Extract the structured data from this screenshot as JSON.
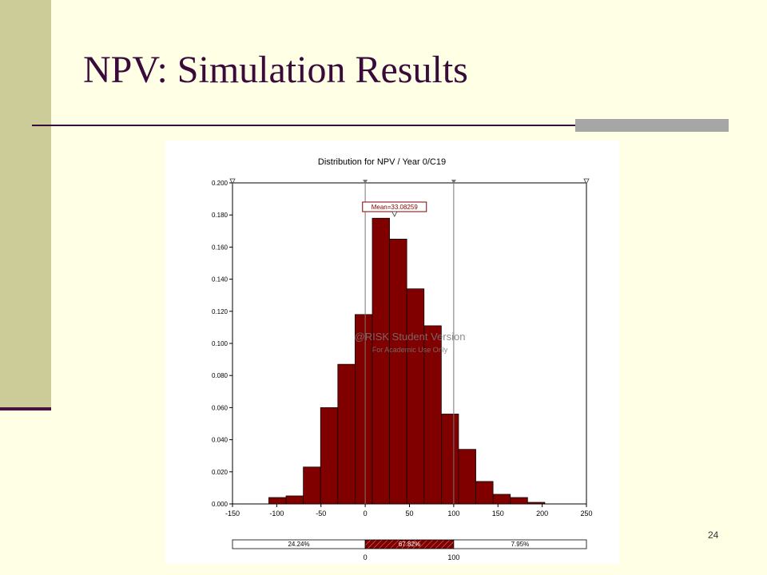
{
  "slide": {
    "title": "NPV: Simulation Results",
    "page_number": "24"
  },
  "colors": {
    "background": "#ffffe5",
    "sidebar": "#cccc99",
    "title": "#3a0b3a",
    "bar_fill": "#800000"
  },
  "chart_data": {
    "type": "bar",
    "title": "Distribution for NPV / Year 0/C19",
    "xlabel": "",
    "ylabel": "",
    "xlim": [
      -150,
      250
    ],
    "ylim": [
      0,
      0.2
    ],
    "x_ticks": [
      "-150",
      "-100",
      "-50",
      "0",
      "50",
      "100",
      "150",
      "200",
      "250"
    ],
    "y_ticks": [
      "0.000",
      "0.020",
      "0.040",
      "0.060",
      "0.080",
      "0.100",
      "0.120",
      "0.140",
      "0.160",
      "0.180",
      "0.200"
    ],
    "bin_width": 19.5,
    "bin_starts": [
      -109,
      -89.5,
      -70,
      -50.5,
      -31,
      -11.5,
      8,
      27.5,
      47,
      66.5,
      86,
      105.5,
      125,
      144.5,
      164,
      183.5
    ],
    "values": [
      0.004,
      0.005,
      0.023,
      0.06,
      0.087,
      0.118,
      0.178,
      0.165,
      0.134,
      0.111,
      0.056,
      0.034,
      0.014,
      0.006,
      0.004,
      0.001
    ],
    "mean": 33.08259,
    "mean_label": "Mean=33.08259",
    "markers": [
      0,
      100
    ],
    "range_ends": [
      -150,
      250
    ],
    "watermark_line1": "@RISK Student Version",
    "watermark_line2": "For Academic Use Only",
    "probability_bar": {
      "segments": [
        {
          "label": "24.24%",
          "from": -150,
          "to": 0
        },
        {
          "label": "67.82%",
          "from": 0,
          "to": 100
        },
        {
          "label": "7.95%",
          "from": 100,
          "to": 250
        }
      ],
      "tick_labels": [
        "0",
        "100"
      ]
    }
  }
}
